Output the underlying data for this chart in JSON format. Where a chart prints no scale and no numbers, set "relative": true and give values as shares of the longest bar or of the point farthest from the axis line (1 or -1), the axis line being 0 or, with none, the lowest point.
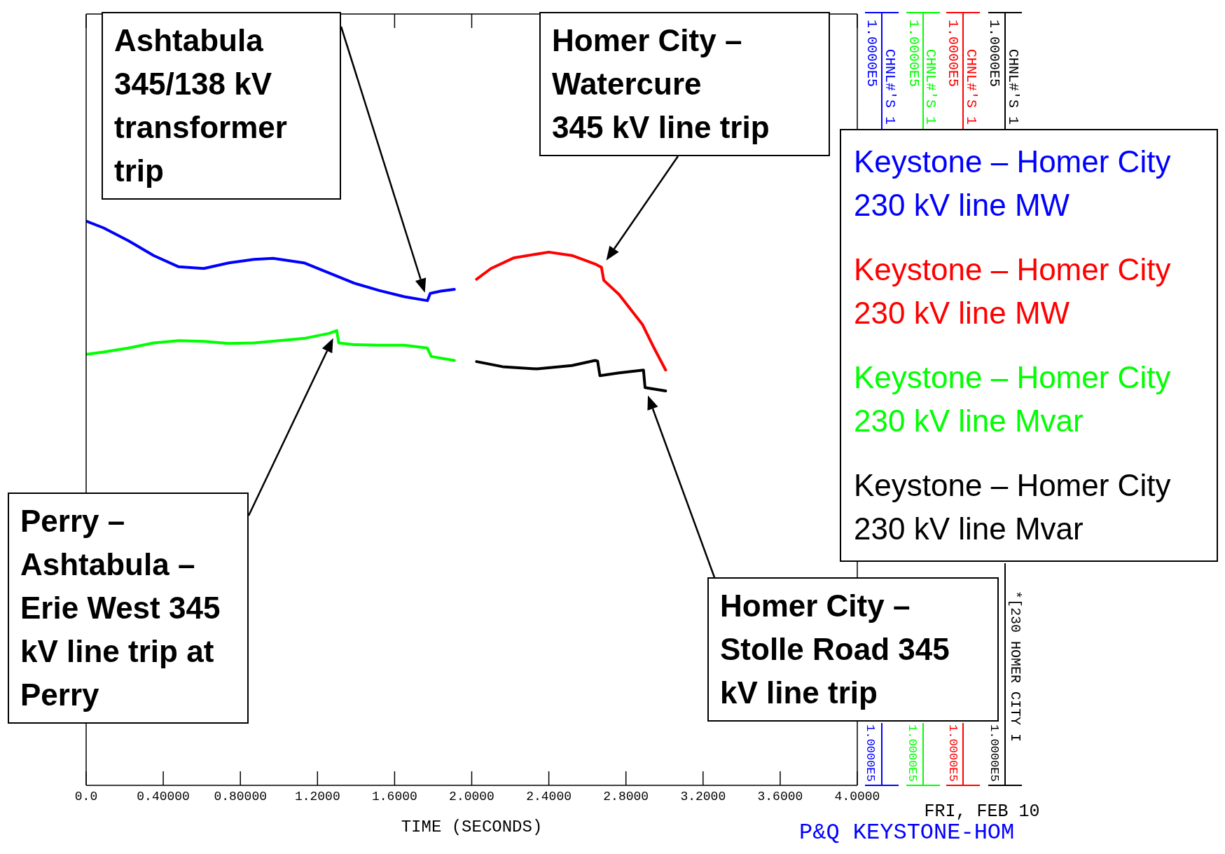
{
  "chart_data": {
    "type": "line",
    "xlabel": "TIME (SECONDS)",
    "relative": true,
    "xlim": [
      0,
      4
    ],
    "xticks": [
      {
        "value": 0,
        "label": "0.0"
      },
      {
        "value": 0.4,
        "label": "0.40000"
      },
      {
        "value": 0.8,
        "label": "0.80000"
      },
      {
        "value": 1.2,
        "label": "1.2000"
      },
      {
        "value": 1.6,
        "label": "1.6000"
      },
      {
        "value": 2,
        "label": "2.0000"
      },
      {
        "value": 2.4,
        "label": "2.4000"
      },
      {
        "value": 2.8,
        "label": "2.8000"
      },
      {
        "value": 3.2,
        "label": "3.2000"
      },
      {
        "value": 3.6,
        "label": "3.6000"
      },
      {
        "value": 4,
        "label": "4.0000"
      }
    ],
    "legend": "right",
    "series": [
      {
        "name": "Keystone – Homer City 230 kV line MW",
        "color": "#0000ff",
        "x": [
          0,
          0.09,
          0.22,
          0.35,
          0.48,
          0.61,
          0.74,
          0.87,
          0.97,
          1.13,
          1.26,
          1.39,
          1.52,
          1.65,
          1.77,
          1.785,
          1.84,
          1.91
        ],
        "values": [
          1,
          0.988,
          0.965,
          0.939,
          0.919,
          0.916,
          0.926,
          0.932,
          0.934,
          0.926,
          0.908,
          0.89,
          0.877,
          0.866,
          0.859,
          0.872,
          0.876,
          0.879
        ]
      },
      {
        "name": "Keystone – Homer City 230 kV line MW",
        "color": "#ff0000",
        "x": [
          2.025,
          2.1,
          2.22,
          2.4,
          2.52,
          2.64,
          2.673,
          2.685,
          2.764,
          2.885,
          2.946,
          3.006
        ],
        "values": [
          0.897,
          0.916,
          0.935,
          0.945,
          0.939,
          0.924,
          0.918,
          0.895,
          0.87,
          0.817,
          0.775,
          0.736
        ]
      },
      {
        "name": "Keystone – Homer City 230 kV line Mvar",
        "color": "#00ff00",
        "x": [
          0,
          0.09,
          0.22,
          0.35,
          0.48,
          0.61,
          0.74,
          0.87,
          1.0,
          1.13,
          1.26,
          1.3,
          1.31,
          1.39,
          1.52,
          1.65,
          1.77,
          1.79,
          1.91
        ],
        "values": [
          0.764,
          0.768,
          0.775,
          0.784,
          0.788,
          0.787,
          0.783,
          0.784,
          0.788,
          0.792,
          0.801,
          0.806,
          0.784,
          0.781,
          0.78,
          0.78,
          0.775,
          0.76,
          0.753
        ]
      },
      {
        "name": "Keystone – Homer City 230 kV line Mvar",
        "color": "#000000",
        "x": [
          2.025,
          2.16,
          2.34,
          2.52,
          2.64,
          2.653,
          2.665,
          2.764,
          2.891,
          2.899,
          3.006
        ],
        "values": [
          0.751,
          0.742,
          0.738,
          0.744,
          0.753,
          0.752,
          0.726,
          0.731,
          0.736,
          0.705,
          0.699
        ]
      }
    ],
    "annotations": [
      "Ashtabula\n345/138 kV\ntransformer\ntrip",
      "Homer City –\nWatercure\n345 kV line trip",
      "Perry –\nAshtabula –\nErie West 345\nkV line trip at\nPerry",
      "Homer City –\nStolle Road 345\nkV line trip",
      "1.0000E5",
      "1.0000E5",
      "1.0000E5",
      "1.0000E5",
      "CHNL#'S 1",
      "CHNL#'S 1",
      "CHNL#'S 1",
      "CHNL#'S 1",
      "1.0000E5",
      "1.0000E5",
      "1.0000E5",
      "1.0000E5",
      "*[230 HOMER CITY I",
      "FRI, FEB 10",
      "P&Q KEYSTONE-HOM"
    ]
  }
}
